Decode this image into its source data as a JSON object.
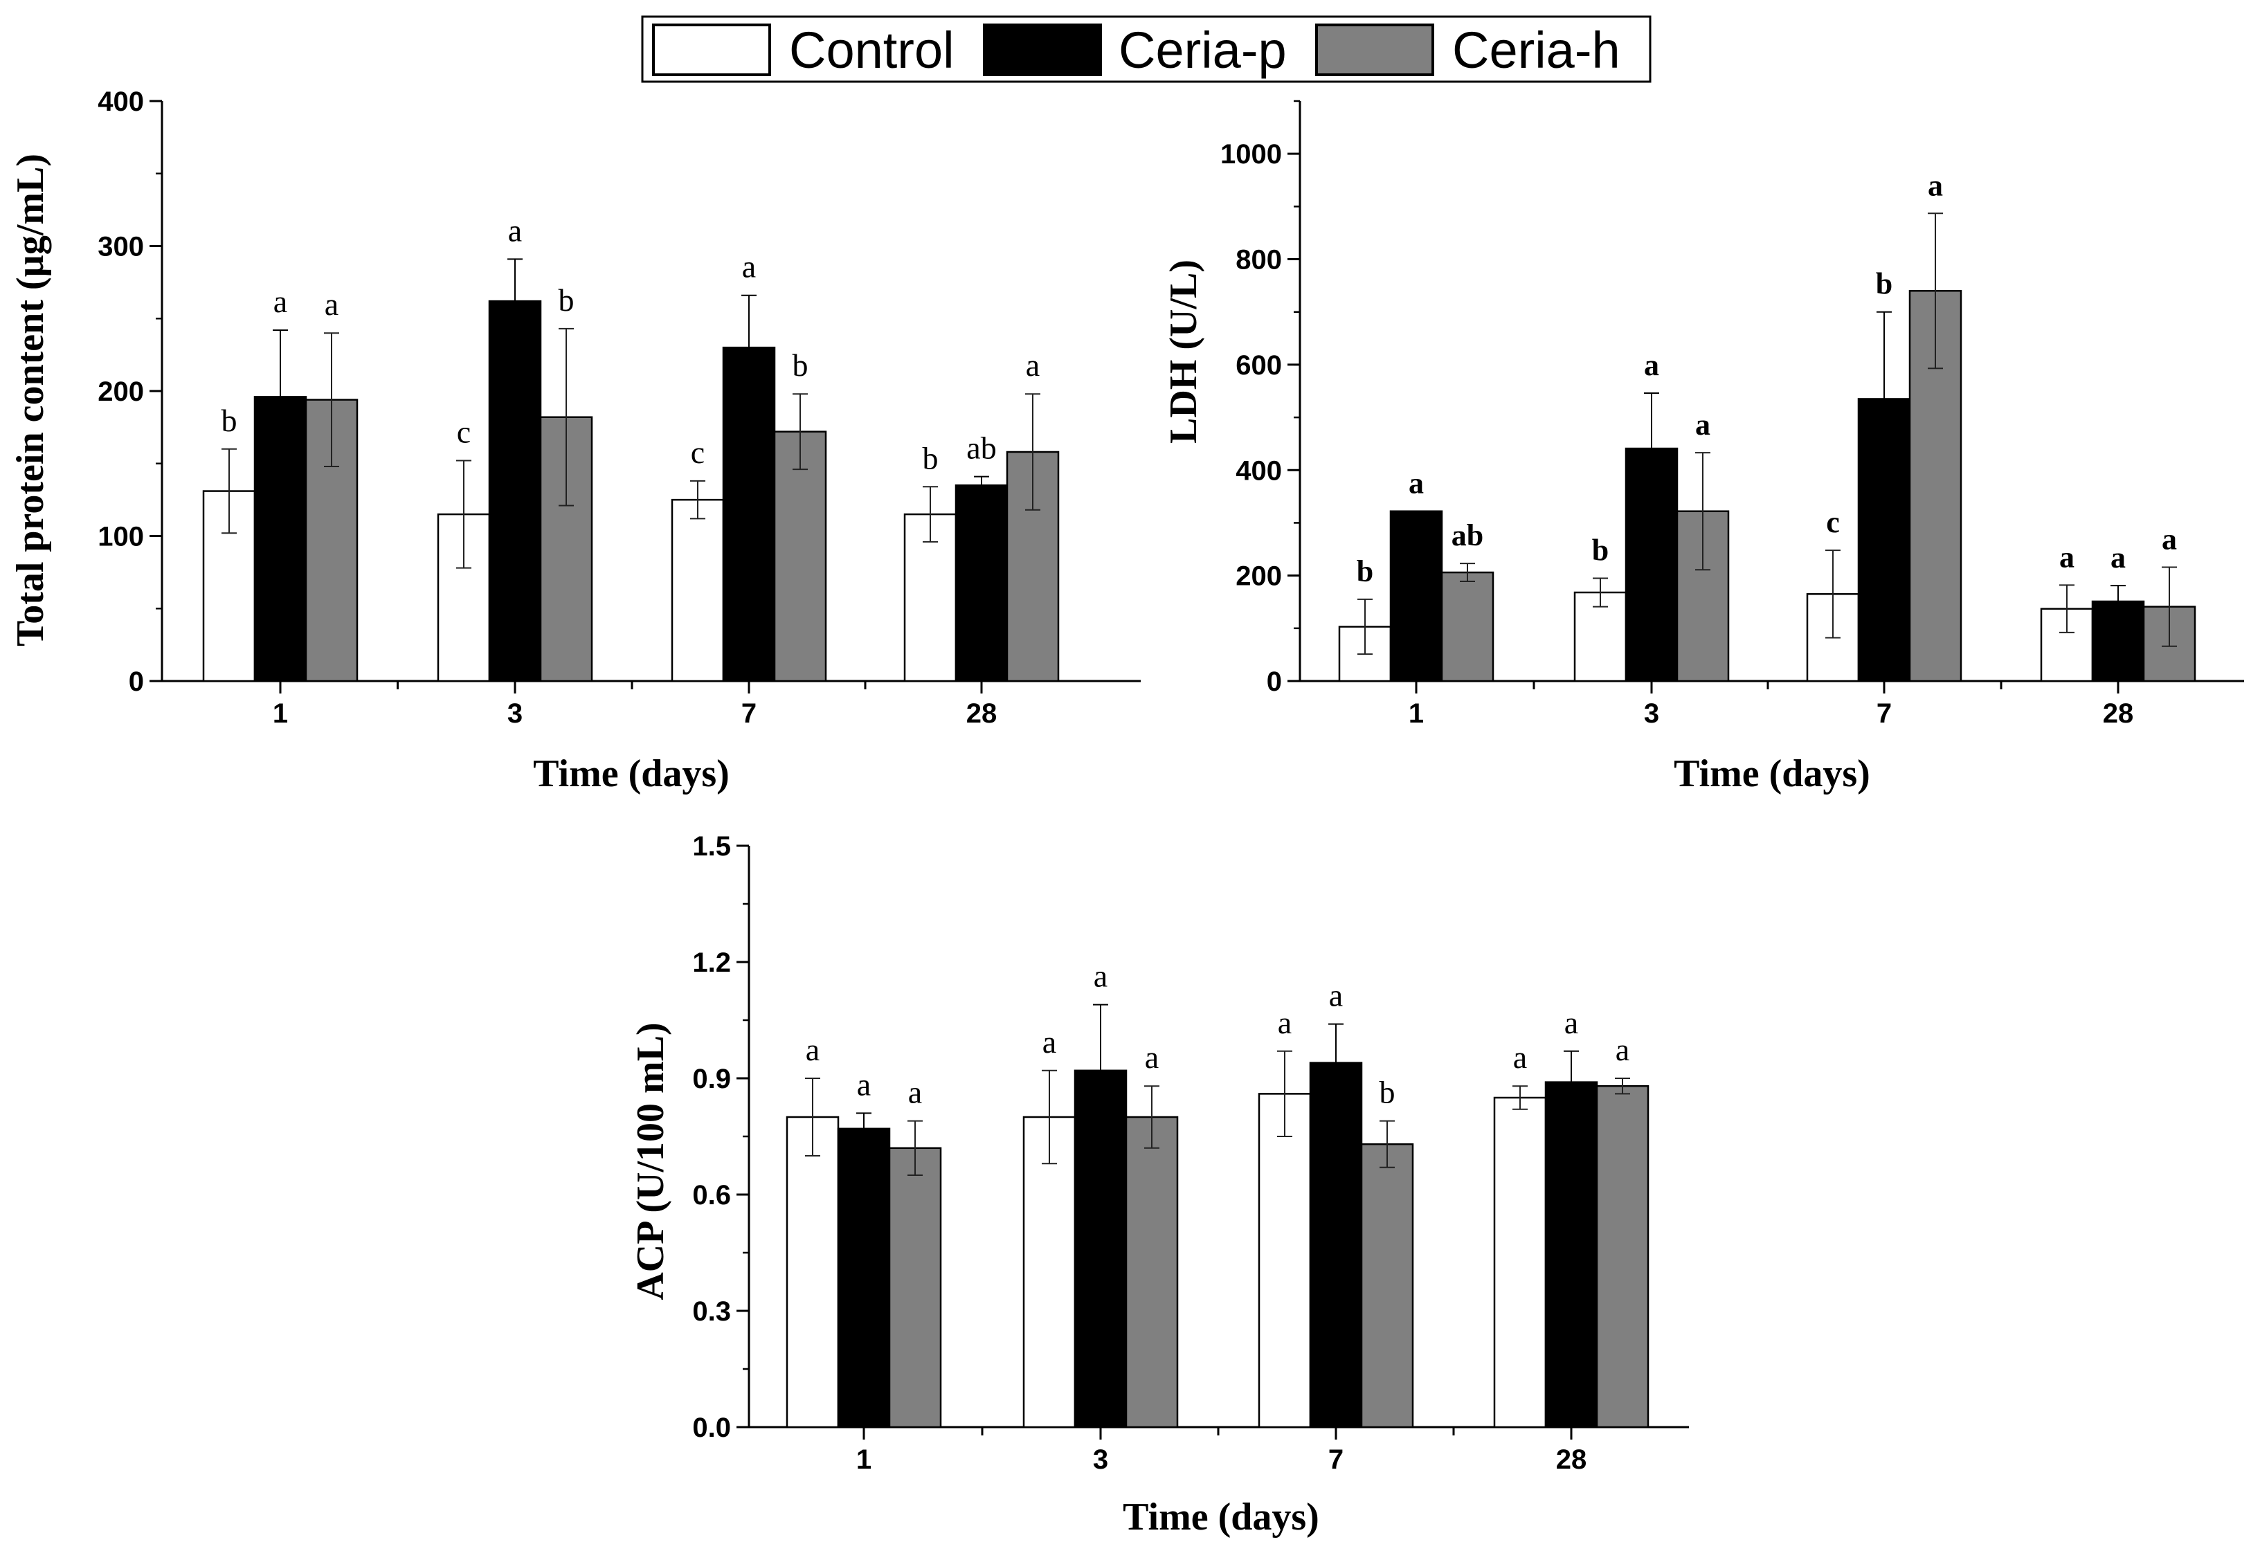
{
  "legend": {
    "position": "top-center",
    "entries": [
      {
        "name": "Control",
        "color": "#ffffff"
      },
      {
        "name": "Ceria-p",
        "color": "#000000"
      },
      {
        "name": "Ceria-h",
        "color": "#808080"
      }
    ]
  },
  "chart_data": [
    {
      "id": "total-protein",
      "type": "bar",
      "title": "",
      "xlabel": "Time (days)",
      "ylabel": "Total protein content (µg/mL)",
      "categories": [
        "1",
        "3",
        "7",
        "28"
      ],
      "ylim": [
        0,
        400
      ],
      "yticks": [
        "0",
        "100",
        "200",
        "300",
        "400"
      ],
      "tick_values": [
        0,
        100,
        200,
        300,
        400
      ],
      "minor_tick_step": 50,
      "series": [
        {
          "name": "Control",
          "values": [
            131,
            115,
            125,
            115
          ],
          "errors": [
            29,
            37,
            13,
            19
          ],
          "letters": [
            "b",
            "c",
            "c",
            "b"
          ]
        },
        {
          "name": "Ceria-p",
          "values": [
            196,
            262,
            230,
            135
          ],
          "errors": [
            46,
            29,
            36,
            6
          ],
          "letters": [
            "a",
            "a",
            "a",
            "ab"
          ]
        },
        {
          "name": "Ceria-h",
          "values": [
            194,
            182,
            172,
            158
          ],
          "errors": [
            46,
            61,
            26,
            40
          ],
          "letters": [
            "a",
            "b",
            "b",
            "a"
          ]
        }
      ]
    },
    {
      "id": "ldh",
      "type": "bar",
      "title": "",
      "xlabel": "Time (days)",
      "ylabel": "LDH (U/L)",
      "categories": [
        "1",
        "3",
        "7",
        "28"
      ],
      "ylim": [
        0,
        1100
      ],
      "yticks": [
        "0",
        "200",
        "400",
        "600",
        "800",
        "1000"
      ],
      "tick_values": [
        0,
        200,
        400,
        600,
        800,
        1000
      ],
      "minor_tick_step": 100,
      "letters_bold": true,
      "series": [
        {
          "name": "Control",
          "values": [
            103,
            168,
            165,
            137
          ],
          "errors": [
            52,
            27,
            83,
            45
          ],
          "letters": [
            "b",
            "b",
            "c",
            "a"
          ]
        },
        {
          "name": "Ceria-p",
          "values": [
            322,
            441,
            535,
            151
          ],
          "errors": [
            0,
            105,
            165,
            30
          ],
          "letters": [
            "a",
            "a",
            "b",
            "a"
          ]
        },
        {
          "name": "Ceria-h",
          "values": [
            206,
            322,
            740,
            141
          ],
          "errors": [
            17,
            111,
            147,
            75
          ],
          "letters": [
            "ab",
            "a",
            "a",
            "a"
          ]
        }
      ]
    },
    {
      "id": "acp",
      "type": "bar",
      "title": "",
      "xlabel": "Time (days)",
      "ylabel": "ACP (U/100 mL)",
      "categories": [
        "1",
        "3",
        "7",
        "28"
      ],
      "ylim": [
        0,
        1.5
      ],
      "yticks": [
        "0.0",
        "0.3",
        "0.6",
        "0.9",
        "1.2",
        "1.5"
      ],
      "tick_values": [
        0,
        0.3,
        0.6,
        0.9,
        1.2,
        1.5
      ],
      "minor_tick_step": 0.15,
      "series": [
        {
          "name": "Control",
          "values": [
            0.8,
            0.8,
            0.86,
            0.85
          ],
          "errors": [
            0.1,
            0.12,
            0.11,
            0.03
          ],
          "letters": [
            "a",
            "a",
            "a",
            "a"
          ]
        },
        {
          "name": "Ceria-p",
          "values": [
            0.77,
            0.92,
            0.94,
            0.89
          ],
          "errors": [
            0.04,
            0.17,
            0.1,
            0.08
          ],
          "letters": [
            "a",
            "a",
            "a",
            "a"
          ]
        },
        {
          "name": "Ceria-h",
          "values": [
            0.72,
            0.8,
            0.73,
            0.88
          ],
          "errors": [
            0.07,
            0.08,
            0.06,
            0.02
          ],
          "letters": [
            "a",
            "a",
            "b",
            "a"
          ]
        }
      ]
    }
  ]
}
